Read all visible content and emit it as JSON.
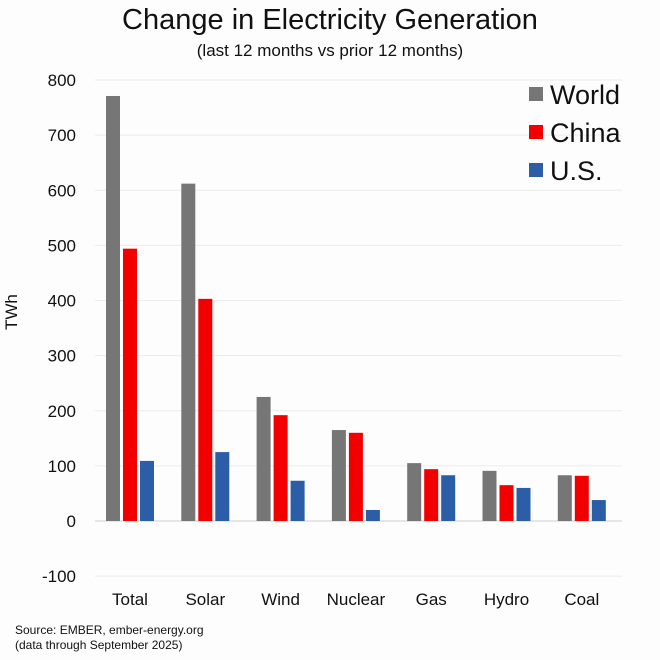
{
  "chart_data": {
    "type": "bar",
    "title": "Change in Electricity Generation",
    "subtitle": "(last 12 months vs prior 12 months)",
    "xlabel": "",
    "ylabel": "TWh",
    "ylim": [
      -100,
      800
    ],
    "yticks": [
      800,
      700,
      600,
      500,
      400,
      300,
      200,
      100,
      0,
      -100
    ],
    "grid": true,
    "legend_position": "top-right",
    "categories": [
      "Total",
      "Solar",
      "Wind",
      "Nuclear",
      "Gas",
      "Hydro",
      "Coal"
    ],
    "series": [
      {
        "name": "World",
        "color": "#767676",
        "values": [
          771,
          612,
          225,
          165,
          105,
          91,
          83
        ]
      },
      {
        "name": "China",
        "color": "#f20000",
        "values": [
          494,
          403,
          192,
          160,
          94,
          65,
          82
        ]
      },
      {
        "name": "U.S.",
        "color": "#2b5ea6",
        "values": [
          109,
          125,
          73,
          20,
          83,
          60,
          38
        ]
      }
    ]
  },
  "source": {
    "line1": "Source: EMBER, ember-energy.org",
    "line2": "(data through September 2025)"
  }
}
